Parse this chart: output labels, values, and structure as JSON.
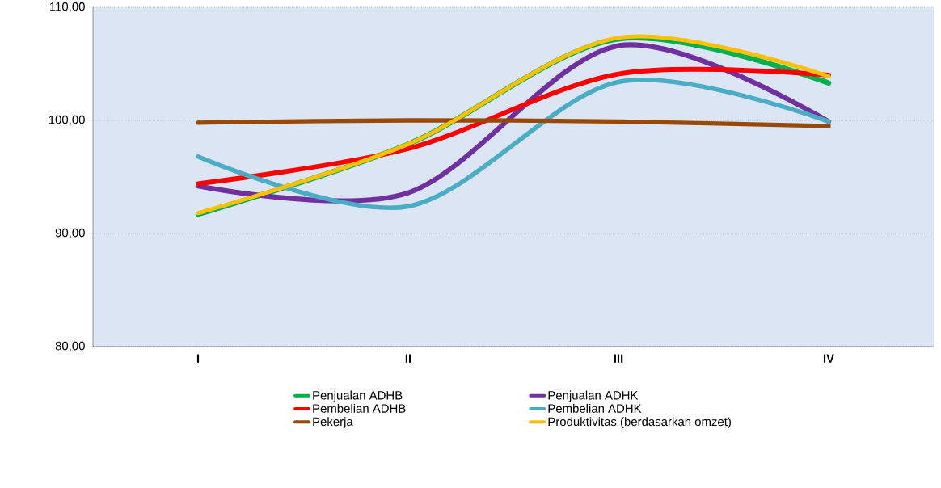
{
  "chart_data": {
    "type": "line",
    "categories": [
      "I",
      "II",
      "III",
      "IV"
    ],
    "series": [
      {
        "name": "Penjualan ADHB",
        "color": "#00b050",
        "values": [
          91.7,
          97.9,
          107.2,
          103.3
        ]
      },
      {
        "name": "Penjualan ADHK",
        "color": "#7030a0",
        "values": [
          94.2,
          93.6,
          106.6,
          99.9
        ]
      },
      {
        "name": "Pembelian ADHB",
        "color": "#ff0000",
        "values": [
          94.4,
          97.5,
          104.1,
          104.0
        ]
      },
      {
        "name": "Pembelian ADHK",
        "color": "#4bacc6",
        "values": [
          96.8,
          92.4,
          103.4,
          99.9
        ]
      },
      {
        "name": "Pekerja",
        "color": "#984807",
        "values": [
          99.8,
          100.0,
          99.9,
          99.5
        ]
      },
      {
        "name": "Produktivitas (berdasarkan omzet)",
        "color": "#ffc000",
        "values": [
          91.8,
          97.9,
          107.3,
          103.9
        ]
      }
    ],
    "ylim": [
      80,
      110
    ],
    "yticks": [
      {
        "value": 80,
        "label": "80,00"
      },
      {
        "value": 90,
        "label": "90,00"
      },
      {
        "value": 100,
        "label": "100,00"
      },
      {
        "value": 110,
        "label": "110,00"
      }
    ],
    "grid": "y",
    "legend": "bottom",
    "marker": "none",
    "line_style": "solid"
  }
}
